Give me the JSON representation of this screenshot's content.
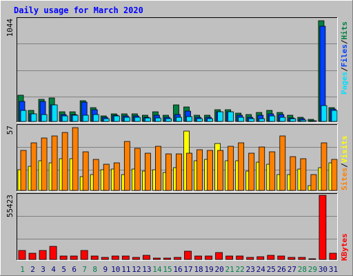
{
  "page": {
    "title": "Daily usage for March 2020"
  },
  "colors": {
    "frame_bg": "#c0c0c0",
    "plot_bg": "#c0c0c0",
    "grid": "#808080",
    "title": "#0000ff",
    "hits": "#008040",
    "files": "#0040ff",
    "pages": "#00e0ff",
    "visits": "#ffff00",
    "sites": "#ff8000",
    "kbytes": "#ff0000",
    "weekday_label": "#000080",
    "weekend_label": "#00804a"
  },
  "legend": {
    "top": {
      "pages": "Pages",
      "sep1": "/",
      "files": "Files",
      "sep2": "/",
      "hits": "Hits"
    },
    "middle": {
      "sites": "Sites",
      "sep1": "/",
      "visits": "Visits"
    },
    "bottom": {
      "kbytes": "KBytes"
    }
  },
  "chart_data": [
    {
      "type": "bar",
      "name": "hits-files-pages",
      "ymax_label": "1044",
      "ylim": [
        0,
        1044
      ],
      "grid": true,
      "categories": [
        "1",
        "2",
        "3",
        "4",
        "5",
        "6",
        "7",
        "8",
        "9",
        "10",
        "11",
        "12",
        "13",
        "14",
        "15",
        "16",
        "17",
        "18",
        "19",
        "20",
        "21",
        "22",
        "23",
        "24",
        "25",
        "26",
        "27",
        "28",
        "29",
        "30",
        "31"
      ],
      "series": [
        {
          "name": "Hits",
          "values": [
            265,
            110,
            225,
            235,
            95,
            95,
            210,
            140,
            55,
            80,
            80,
            75,
            65,
            95,
            60,
            170,
            145,
            65,
            65,
            120,
            120,
            85,
            70,
            90,
            110,
            90,
            60,
            45,
            20,
            1020,
            140
          ]
        },
        {
          "name": "Files",
          "values": [
            200,
            80,
            205,
            170,
            70,
            70,
            195,
            120,
            40,
            60,
            55,
            55,
            45,
            60,
            40,
            70,
            105,
            40,
            40,
            100,
            100,
            60,
            45,
            60,
            80,
            70,
            35,
            30,
            10,
            965,
            125
          ]
        },
        {
          "name": "Pages",
          "values": [
            110,
            75,
            70,
            165,
            55,
            60,
            65,
            70,
            30,
            55,
            45,
            40,
            35,
            35,
            30,
            45,
            50,
            30,
            25,
            95,
            95,
            45,
            30,
            25,
            55,
            40,
            25,
            15,
            10,
            160,
            110
          ]
        }
      ]
    },
    {
      "type": "bar",
      "name": "visits-sites",
      "ymax_label": "57",
      "ylim": [
        0,
        57
      ],
      "grid": true,
      "categories": [
        "1",
        "2",
        "3",
        "4",
        "5",
        "6",
        "7",
        "8",
        "9",
        "10",
        "11",
        "12",
        "13",
        "14",
        "15",
        "16",
        "17",
        "18",
        "19",
        "20",
        "21",
        "22",
        "23",
        "24",
        "25",
        "26",
        "27",
        "28",
        "29",
        "30",
        "31"
      ],
      "series": [
        {
          "name": "Visits",
          "values": [
            18,
            21,
            26,
            24,
            28,
            28,
            12,
            14,
            18,
            19,
            14,
            19,
            17,
            18,
            16,
            20,
            52,
            26,
            27,
            41,
            26,
            26,
            17,
            25,
            23,
            14,
            14,
            19,
            4,
            20,
            24
          ]
        },
        {
          "name": "Sites",
          "values": [
            35,
            42,
            46,
            48,
            51,
            55,
            34,
            27,
            23,
            24,
            43,
            37,
            33,
            39,
            32,
            32,
            33,
            36,
            35,
            35,
            39,
            42,
            33,
            38,
            34,
            48,
            30,
            28,
            14,
            42,
            27
          ]
        }
      ]
    },
    {
      "type": "bar",
      "name": "kbytes",
      "ymax_label": "55423",
      "ylim": [
        0,
        55423
      ],
      "grid": true,
      "categories": [
        "1",
        "2",
        "3",
        "4",
        "5",
        "6",
        "7",
        "8",
        "9",
        "10",
        "11",
        "12",
        "13",
        "14",
        "15",
        "16",
        "17",
        "18",
        "19",
        "20",
        "21",
        "22",
        "23",
        "24",
        "25",
        "26",
        "27",
        "28",
        "29",
        "30",
        "31"
      ],
      "series": [
        {
          "name": "KBytes",
          "values": [
            7600,
            5200,
            7600,
            11200,
            3200,
            3200,
            7600,
            3200,
            2000,
            3200,
            2800,
            2000,
            3600,
            1200,
            1200,
            2000,
            7200,
            3200,
            3200,
            6000,
            3200,
            3200,
            2000,
            2400,
            3600,
            2800,
            2000,
            1600,
            800,
            55000,
            5200
          ]
        }
      ]
    }
  ],
  "days": {
    "labels": [
      "1",
      "2",
      "3",
      "4",
      "5",
      "6",
      "7",
      "8",
      "9",
      "10",
      "11",
      "12",
      "13",
      "14",
      "15",
      "16",
      "17",
      "18",
      "19",
      "20",
      "21",
      "22",
      "23",
      "24",
      "25",
      "26",
      "27",
      "28",
      "29",
      "30",
      "31"
    ],
    "weekend": [
      true,
      false,
      false,
      false,
      false,
      false,
      true,
      true,
      false,
      false,
      false,
      false,
      false,
      true,
      true,
      false,
      false,
      false,
      false,
      false,
      true,
      true,
      false,
      false,
      false,
      false,
      false,
      true,
      true,
      false,
      false
    ]
  }
}
